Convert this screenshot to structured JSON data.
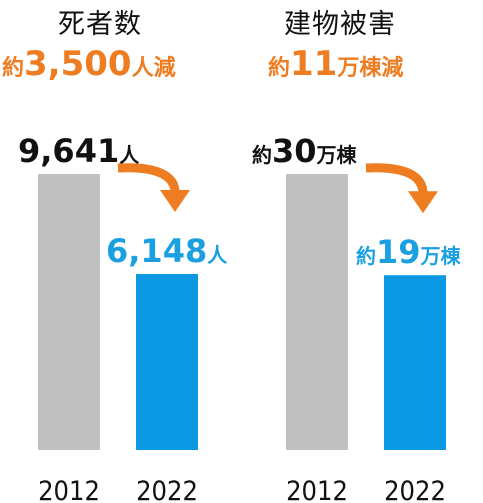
{
  "colors": {
    "bar_2012": "#c0c0c0",
    "bar_2022": "#0b99e3",
    "accent_orange": "#ee7d22",
    "accent_blue": "#1a9fe0",
    "text": "#111111"
  },
  "chart_data": [
    {
      "type": "bar",
      "title": "死者数",
      "reduction": {
        "prefix": "約",
        "number": "3,500",
        "unit": "人減"
      },
      "categories": [
        "2012",
        "2022"
      ],
      "values": [
        9641,
        6148
      ],
      "value_labels": [
        {
          "prefix": "",
          "number": "9,641",
          "unit": "人"
        },
        {
          "prefix": "",
          "number": "6,148",
          "unit": "人"
        }
      ],
      "ylim": [
        0,
        9641
      ]
    },
    {
      "type": "bar",
      "title": "建物被害",
      "reduction": {
        "prefix": "約",
        "number": "11",
        "unit": "万棟減"
      },
      "categories": [
        "2012",
        "2022"
      ],
      "values": [
        30,
        19
      ],
      "value_labels": [
        {
          "prefix": "約",
          "number": "30",
          "unit": "万棟"
        },
        {
          "prefix": "約",
          "number": "19",
          "unit": "万棟"
        }
      ],
      "ylim": [
        0,
        30
      ]
    }
  ]
}
